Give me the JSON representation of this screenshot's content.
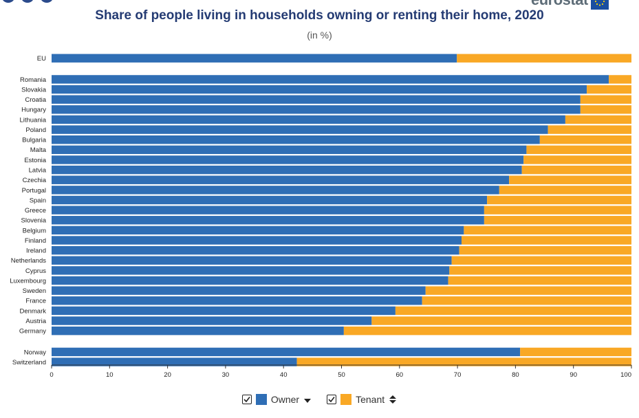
{
  "title": "Share of people living in households owning or renting their home, 2020",
  "subtitle": "(in %)",
  "logo_text": "eurostat",
  "colors": {
    "owner": "#2f6eb5",
    "tenant": "#f9a825",
    "title": "#243b73"
  },
  "legend": {
    "owner_label": "Owner",
    "tenant_label": "Tenant",
    "owner_sort_icon": "sort-descending-icon",
    "tenant_sort_icon": "sort-both-icon"
  },
  "chart_data": {
    "type": "bar",
    "orientation": "horizontal",
    "stacked": true,
    "categories": [
      "EU",
      "Romania",
      "Slovakia",
      "Croatia",
      "Hungary",
      "Lithuania",
      "Poland",
      "Bulgaria",
      "Malta",
      "Estonia",
      "Latvia",
      "Czechia",
      "Portugal",
      "Spain",
      "Greece",
      "Slovenia",
      "Belgium",
      "Finland",
      "Ireland",
      "Netherlands",
      "Cyprus",
      "Luxembourg",
      "Sweden",
      "France",
      "Denmark",
      "Austria",
      "Germany",
      "Norway",
      "Switzerland"
    ],
    "groups": [
      [
        0
      ],
      [
        1,
        2,
        3,
        4,
        5,
        6,
        7,
        8,
        9,
        10,
        11,
        12,
        13,
        14,
        15,
        16,
        17,
        18,
        19,
        20,
        21,
        22,
        23,
        24,
        25,
        26
      ],
      [
        27,
        28
      ]
    ],
    "series": [
      {
        "name": "Owner",
        "values": [
          69.9,
          96.1,
          92.3,
          91.2,
          91.2,
          88.6,
          85.6,
          84.2,
          81.9,
          81.4,
          81.1,
          78.9,
          77.2,
          75.1,
          74.6,
          74.6,
          71.1,
          70.7,
          70.3,
          69.0,
          68.6,
          68.4,
          64.5,
          63.9,
          59.3,
          55.2,
          50.4,
          80.8,
          42.3
        ]
      },
      {
        "name": "Tenant",
        "values": [
          30.1,
          3.9,
          7.7,
          8.8,
          8.8,
          11.4,
          14.4,
          15.8,
          18.1,
          18.6,
          18.9,
          21.1,
          22.8,
          24.9,
          25.4,
          25.4,
          28.9,
          29.3,
          29.7,
          31.0,
          31.4,
          31.6,
          35.5,
          36.1,
          40.7,
          44.8,
          49.6,
          19.2,
          57.7
        ]
      }
    ],
    "xlim": [
      0,
      100
    ],
    "xticks": [
      0,
      10,
      20,
      30,
      40,
      50,
      60,
      70,
      80,
      90,
      100
    ],
    "legend_position": "bottom",
    "grid": false
  }
}
